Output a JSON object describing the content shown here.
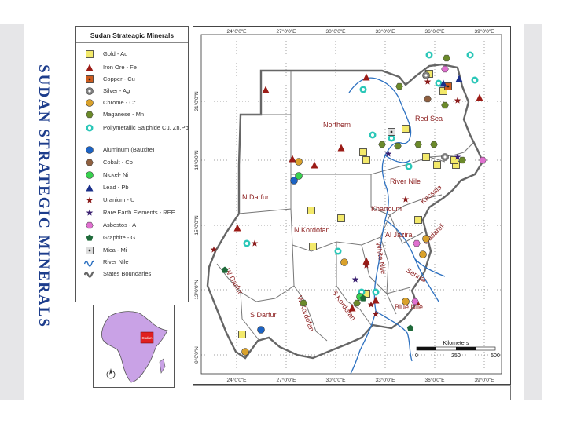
{
  "side_title": "SUDAN STRATEGIC MINERALS",
  "legend": {
    "title": "Sudan Strateagic Minerals",
    "items": [
      {
        "label": "Gold - Au",
        "shape": "square",
        "color": "#f3e96a"
      },
      {
        "label": "Iron Ore - Fe",
        "shape": "triangle",
        "color": "#9b1b16"
      },
      {
        "label": "Copper - Cu",
        "shape": "square-dot",
        "color": "#cc5b1e"
      },
      {
        "label": "Silver - Ag",
        "shape": "circle-dot",
        "color": "#808080"
      },
      {
        "label": "Chrome - Cr",
        "shape": "circle",
        "color": "#d9a12b"
      },
      {
        "label": "Maganese - Mn",
        "shape": "hexagon",
        "color": "#6b8a2a"
      },
      {
        "label": "Pollymetallic Salphide Cu, Zn,Pb",
        "shape": "ring",
        "color": "#2bc7b8"
      },
      {
        "label": "Aluminum (Bauxite)",
        "shape": "circle",
        "color": "#1c63c4"
      },
      {
        "label": "Cobalt - Co",
        "shape": "hexagon",
        "color": "#8f6040"
      },
      {
        "label": "Nickel- Ni",
        "shape": "circle",
        "color": "#39d14f"
      },
      {
        "label": "Lead - Pb",
        "shape": "triangle",
        "color": "#1a2f8a"
      },
      {
        "label": "Uranium - U",
        "shape": "star",
        "color": "#8a1a1a"
      },
      {
        "label": "Rare Earth Elements - REE",
        "shape": "star",
        "color": "#3a2070"
      },
      {
        "label": "Asbestos - A",
        "shape": "hexagon",
        "color": "#e070d0"
      },
      {
        "label": "Graphite - G",
        "shape": "pentagon",
        "color": "#1f6a3a"
      },
      {
        "label": "Mica - Mi",
        "shape": "square-dot",
        "color": "#dddddd"
      },
      {
        "label": "River Nile",
        "shape": "river",
        "color": "#2c70c0"
      },
      {
        "label": "States Boundaries",
        "shape": "boundary",
        "color": "#666666"
      }
    ]
  },
  "map": {
    "lon_ticks": [
      "24°0'0\"E",
      "27°0'0\"E",
      "30°0'0\"E",
      "33°0'0\"E",
      "36°0'0\"E",
      "39°0'0\"E"
    ],
    "lat_ticks": [
      "21°0'0\"N",
      "18°0'0\"N",
      "15°0'0\"N",
      "12°0'0\"N",
      "9°0'0\"N"
    ],
    "regions": [
      "Northern",
      "Red Sea",
      "River Nile",
      "N Darfur",
      "N Kordofan",
      "Khartoum",
      "Kassala",
      "Al Jazira",
      "Gadaref",
      "Sennar",
      "W Darfur",
      "S Darfur",
      "W Kordofan",
      "S Kordofan",
      "White Nile",
      "Blue Nile"
    ],
    "scale_title": "Kilometers",
    "scale_labels": [
      "0",
      "250",
      "500"
    ]
  },
  "inset": {
    "label": "Sudan"
  },
  "colors": {
    "side_title": "#1d3d8c",
    "region_label": "#8b1d1d",
    "river": "#2c70c0"
  }
}
